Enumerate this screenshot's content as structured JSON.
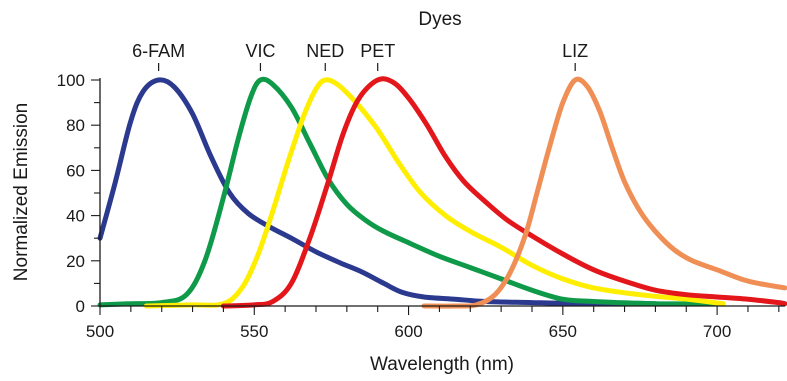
{
  "chart_data": {
    "type": "line",
    "title": "Dyes",
    "xlabel": "Wavelength (nm)",
    "ylabel": "Normalized Emission",
    "xlim": [
      500,
      722
    ],
    "ylim": [
      0,
      100
    ],
    "x_ticks": [
      500,
      550,
      600,
      650,
      700
    ],
    "y_ticks": [
      0,
      20,
      40,
      60,
      80,
      100
    ],
    "grid": false,
    "legend": "none",
    "series": [
      {
        "name": "6-FAM",
        "color": "#2b3a8f",
        "peak": 519,
        "points": [
          [
            500,
            30
          ],
          [
            505,
            55
          ],
          [
            510,
            82
          ],
          [
            514,
            95
          ],
          [
            519,
            100
          ],
          [
            524,
            97
          ],
          [
            530,
            85
          ],
          [
            536,
            66
          ],
          [
            542,
            50
          ],
          [
            548,
            41
          ],
          [
            555,
            35
          ],
          [
            562,
            30
          ],
          [
            570,
            24
          ],
          [
            578,
            19
          ],
          [
            585,
            15
          ],
          [
            592,
            10
          ],
          [
            598,
            6
          ],
          [
            605,
            4
          ],
          [
            615,
            3
          ],
          [
            625,
            2
          ],
          [
            640,
            1.5
          ],
          [
            660,
            1
          ],
          [
            680,
            1
          ]
        ]
      },
      {
        "name": "VIC",
        "color": "#0f9a4a",
        "peak": 552,
        "points": [
          [
            500,
            0.5
          ],
          [
            510,
            1
          ],
          [
            520,
            1.5
          ],
          [
            528,
            5
          ],
          [
            534,
            20
          ],
          [
            540,
            48
          ],
          [
            545,
            75
          ],
          [
            549,
            93
          ],
          [
            552,
            100
          ],
          [
            556,
            98
          ],
          [
            562,
            88
          ],
          [
            568,
            72
          ],
          [
            574,
            56
          ],
          [
            580,
            45
          ],
          [
            586,
            38
          ],
          [
            592,
            33
          ],
          [
            600,
            28
          ],
          [
            610,
            22
          ],
          [
            620,
            17
          ],
          [
            630,
            12
          ],
          [
            640,
            7
          ],
          [
            650,
            3
          ],
          [
            660,
            2
          ],
          [
            680,
            1
          ],
          [
            700,
            1
          ]
        ]
      },
      {
        "name": "NED",
        "color": "#ffee00",
        "peak": 573,
        "points": [
          [
            515,
            0
          ],
          [
            530,
            0.5
          ],
          [
            540,
            1
          ],
          [
            546,
            8
          ],
          [
            551,
            22
          ],
          [
            556,
            42
          ],
          [
            561,
            64
          ],
          [
            566,
            84
          ],
          [
            570,
            96
          ],
          [
            573,
            100
          ],
          [
            577,
            98
          ],
          [
            583,
            90
          ],
          [
            590,
            78
          ],
          [
            597,
            63
          ],
          [
            604,
            50
          ],
          [
            612,
            40
          ],
          [
            620,
            33
          ],
          [
            630,
            26
          ],
          [
            640,
            18
          ],
          [
            650,
            12
          ],
          [
            660,
            8
          ],
          [
            675,
            5
          ],
          [
            690,
            3
          ],
          [
            702,
            1
          ]
        ]
      },
      {
        "name": "PET",
        "color": "#e3171b",
        "peak": 590,
        "points": [
          [
            540,
            0
          ],
          [
            550,
            0.5
          ],
          [
            556,
            2
          ],
          [
            562,
            10
          ],
          [
            568,
            30
          ],
          [
            574,
            55
          ],
          [
            579,
            77
          ],
          [
            584,
            92
          ],
          [
            590,
            100
          ],
          [
            595,
            99
          ],
          [
            600,
            92
          ],
          [
            606,
            80
          ],
          [
            612,
            66
          ],
          [
            618,
            55
          ],
          [
            625,
            46
          ],
          [
            632,
            38
          ],
          [
            640,
            31
          ],
          [
            650,
            23
          ],
          [
            660,
            16
          ],
          [
            670,
            11
          ],
          [
            680,
            7
          ],
          [
            690,
            5
          ],
          [
            700,
            4
          ],
          [
            710,
            3
          ],
          [
            720,
            1.5
          ],
          [
            722,
            1
          ]
        ]
      },
      {
        "name": "LIZ",
        "color": "#f08f55",
        "peak": 654,
        "points": [
          [
            605,
            0
          ],
          [
            615,
            0
          ],
          [
            622,
            0.5
          ],
          [
            628,
            5
          ],
          [
            633,
            15
          ],
          [
            638,
            32
          ],
          [
            642,
            52
          ],
          [
            646,
            72
          ],
          [
            650,
            90
          ],
          [
            654,
            100
          ],
          [
            658,
            97
          ],
          [
            662,
            86
          ],
          [
            666,
            70
          ],
          [
            670,
            55
          ],
          [
            675,
            42
          ],
          [
            680,
            33
          ],
          [
            686,
            25
          ],
          [
            692,
            20
          ],
          [
            700,
            16
          ],
          [
            710,
            11
          ],
          [
            722,
            8
          ]
        ]
      }
    ]
  }
}
